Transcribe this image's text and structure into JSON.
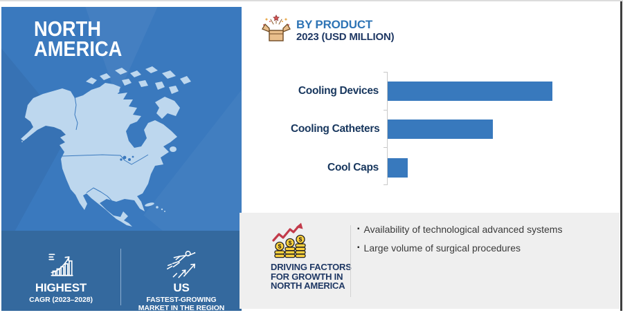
{
  "region_panel": {
    "title_line1": "NORTH",
    "title_line2": "AMERICA",
    "stats": [
      {
        "icon": "growth-chart-icon",
        "title": "HIGHEST",
        "line1": "CAGR (2023–2028)",
        "line2": ""
      },
      {
        "icon": "fast-growth-icon",
        "title": "US",
        "line1": "FASTEST-GROWING",
        "line2": "MARKET IN THE REGION"
      }
    ]
  },
  "chart_header": {
    "icon": "product-box-icon",
    "title": "BY PRODUCT",
    "subtitle": "2023 (USD MILLION)"
  },
  "chart_data": {
    "type": "bar",
    "orientation": "horizontal",
    "title": "BY PRODUCT",
    "subtitle": "2023 (USD MILLION)",
    "unit": "USD Million",
    "categories": [
      "Cooling Devices",
      "Cooling Catheters",
      "Cool Caps"
    ],
    "values_relative_pct_of_max": [
      100,
      64,
      12
    ],
    "value_labels_shown": false,
    "axis_labels_shown": false,
    "gridlines": false,
    "legend": "none",
    "bar_color": "#3879bd"
  },
  "driving_factors": {
    "icon": "coins-growth-icon",
    "title_line1": "DRIVING FACTORS",
    "title_line2": "FOR GROWTH IN",
    "title_line3": "NORTH AMERICA",
    "bullets": [
      "Availability of technological advanced systems",
      "Large volume of surgical procedures"
    ]
  },
  "colors": {
    "panel_blue": "#3a79be",
    "band_blue": "#34699e",
    "map_blue": "#bdd7ee",
    "bar_blue": "#3879bd",
    "navy_text": "#1f3864",
    "header_blue": "#2e74b5",
    "gray_panel": "#efefef",
    "arrow_red": "#c23a4a",
    "coin_gold": "#ffd23e"
  }
}
